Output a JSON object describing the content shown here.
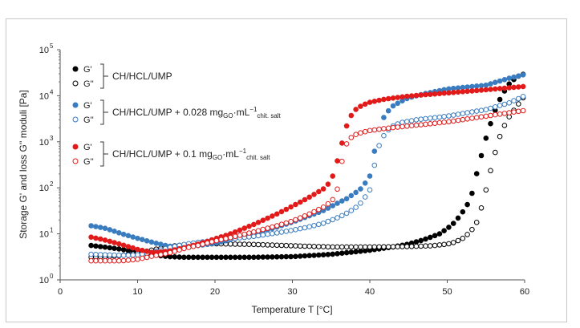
{
  "chart_data": {
    "type": "scatter",
    "title": "",
    "xlabel": "Temperature T [°C]",
    "ylabel": "Storage G' and loss G'' moduli [Pa]",
    "xlim": [
      0,
      60
    ],
    "ylim": [
      1,
      100000
    ],
    "yscale": "log",
    "xticks": [
      0,
      10,
      20,
      30,
      40,
      50,
      60
    ],
    "yticks": [
      1,
      10,
      100,
      1000,
      10000,
      100000
    ],
    "yticklabels": [
      "10^0",
      "10^1",
      "10^2",
      "10^3",
      "10^4",
      "10^5"
    ],
    "grid": false,
    "legend": {
      "groups": [
        {
          "entries": [
            "G'",
            "G''"
          ],
          "label": "CH/HCL/UMP",
          "label_sub": ""
        },
        {
          "entries": [
            "G'",
            "G''"
          ],
          "label": "CH/HCL/UMP + 0.028 mg",
          "label_sub": "GO",
          "label_mid": "·mL",
          "label_sup": "−1",
          "label_sub2": "chit. salt"
        },
        {
          "entries": [
            "G'",
            "G''"
          ],
          "label": "CH/HCL/UMP + 0.1 mg",
          "label_sub": "GO",
          "label_mid": "·mL",
          "label_sup": "−1",
          "label_sub2": "chit. salt"
        }
      ]
    },
    "series": [
      {
        "name": "CH/HCL/UMP G'",
        "color": "#000000",
        "filled": true,
        "x": [
          4,
          6,
          8,
          10,
          12,
          14,
          16,
          20,
          25,
          30,
          35,
          40,
          43,
          45,
          47,
          49,
          50,
          51,
          52,
          53,
          54,
          55,
          56,
          57,
          58,
          59,
          60
        ],
        "y": [
          5.6,
          5.1,
          4.6,
          4.0,
          3.5,
          3.2,
          3.1,
          3.1,
          3.1,
          3.2,
          3.6,
          4.4,
          5.2,
          6.0,
          7.5,
          10,
          13,
          18,
          30,
          55,
          280,
          1200,
          4000,
          10000,
          18000,
          26000,
          30000
        ]
      },
      {
        "name": "CH/HCL/UMP G''",
        "color": "#000000",
        "filled": false,
        "x": [
          4,
          6,
          8,
          10,
          12,
          14,
          16,
          20,
          25,
          30,
          35,
          40,
          45,
          48,
          50,
          51,
          52,
          53,
          54,
          55,
          56,
          57,
          58,
          59,
          60
        ],
        "y": [
          3.1,
          3.2,
          3.4,
          3.8,
          4.5,
          5.3,
          5.8,
          6.1,
          5.9,
          5.5,
          5.2,
          5.2,
          5.3,
          5.5,
          6.0,
          6.6,
          8.0,
          11,
          20,
          90,
          450,
          1700,
          3500,
          6000,
          10000
        ]
      },
      {
        "name": "CH/HCL/UMP + 0.028 mg G'",
        "color": "#3a7cc0",
        "filled": true,
        "x": [
          4,
          6,
          8,
          10,
          12,
          14,
          16,
          18,
          20,
          22,
          25,
          28,
          30,
          32,
          34,
          36,
          37,
          38,
          39,
          40,
          40.5,
          41,
          41.5,
          42,
          43,
          44,
          45,
          47,
          50,
          55,
          58,
          60
        ],
        "y": [
          15,
          13,
          10,
          8,
          6.5,
          5.4,
          5.3,
          5.6,
          6.2,
          7.5,
          10,
          14,
          18,
          24,
          32,
          48,
          58,
          75,
          100,
          180,
          500,
          1500,
          2600,
          4000,
          6000,
          7500,
          9000,
          11000,
          14000,
          17000,
          24000,
          29000
        ]
      },
      {
        "name": "CH/HCL/UMP + 0.028 mg G''",
        "color": "#3a7cc0",
        "filled": false,
        "x": [
          4,
          6,
          8,
          10,
          12,
          14,
          16,
          18,
          20,
          22,
          25,
          28,
          30,
          32,
          34,
          36,
          37,
          38,
          39,
          40,
          41,
          42,
          43,
          44,
          46,
          50,
          55,
          58,
          60
        ],
        "y": [
          3.6,
          3.5,
          3.4,
          3.5,
          4.0,
          5.0,
          5.9,
          6.6,
          7.2,
          7.8,
          8.8,
          10.5,
          12,
          14,
          17,
          23,
          28,
          35,
          50,
          90,
          700,
          1600,
          2200,
          2600,
          3000,
          3600,
          5000,
          7000,
          10000
        ]
      },
      {
        "name": "CH/HCL/UMP + 0.1 mg G'",
        "color": "#e21a1a",
        "filled": true,
        "x": [
          4,
          6,
          8,
          10,
          12,
          14,
          16,
          18,
          20,
          22,
          25,
          28,
          30,
          32,
          34,
          35,
          35.5,
          36,
          36.5,
          37,
          37.5,
          38,
          39,
          40,
          42,
          45,
          50,
          55,
          60
        ],
        "y": [
          8.5,
          7.2,
          5.8,
          4.6,
          3.9,
          4.2,
          5.0,
          6.1,
          7.8,
          10,
          16,
          27,
          40,
          60,
          95,
          140,
          260,
          500,
          1100,
          2200,
          3500,
          4800,
          6200,
          7200,
          8500,
          9800,
          11500,
          13500,
          16000
        ]
      },
      {
        "name": "CH/HCL/UMP + 0.1 mg G''",
        "color": "#e21a1a",
        "filled": false,
        "x": [
          4,
          6,
          8,
          10,
          12,
          14,
          16,
          18,
          20,
          22,
          25,
          28,
          30,
          32,
          34,
          35,
          35.5,
          36,
          36.5,
          37,
          37.5,
          38,
          39,
          40,
          42,
          45,
          50,
          55,
          60
        ],
        "y": [
          2.6,
          2.6,
          2.6,
          2.8,
          3.3,
          3.8,
          4.8,
          5.7,
          7.0,
          8.3,
          11,
          15,
          19,
          26,
          38,
          50,
          65,
          120,
          500,
          900,
          1200,
          1400,
          1600,
          1750,
          1950,
          2200,
          2700,
          3600,
          4800
        ]
      }
    ]
  }
}
